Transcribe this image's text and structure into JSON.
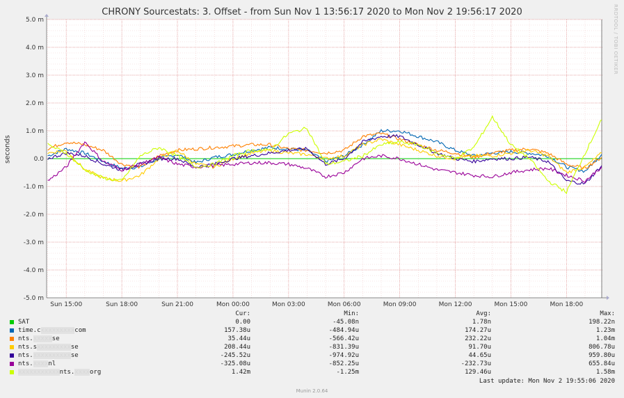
{
  "title": "CHRONY Sourcestats: 3. Offset - from Sun Nov  1 13:56:17 2020 to Mon Nov  2 19:56:17 2020",
  "watermark": "RRDTOOL / TOBI OETIKER",
  "footer": "Munin 2.0.64",
  "last_update": "Last update: Mon Nov  2 19:55:06 2020",
  "legend_header": {
    "cur": "Cur:",
    "min": "Min:",
    "avg": "Avg:",
    "max": "Max:"
  },
  "legend": [
    {
      "name": "SAT",
      "name_pre": "SAT",
      "name_mask": "",
      "name_post": "",
      "color": "#00cc00",
      "cur": "0.00",
      "min": "-45.08n",
      "avg": "1.78n",
      "max": "198.22n"
    },
    {
      "name": "time.c…com",
      "name_pre": "time.c",
      "name_mask": "xxxxxxxxx",
      "name_post": "com",
      "color": "#0066b3",
      "cur": "157.38u",
      "min": "-484.94u",
      "avg": "174.27u",
      "max": "1.23m"
    },
    {
      "name": "nts.…se",
      "name_pre": "nts.",
      "name_mask": "xxxxx",
      "name_post": "se",
      "color": "#ff8000",
      "cur": "35.44u",
      "min": "-566.42u",
      "avg": "232.22u",
      "max": "1.04m"
    },
    {
      "name": "nts.s…se",
      "name_pre": "nts.s",
      "name_mask": "xxxxxxxxx",
      "name_post": "se",
      "color": "#ffcc00",
      "cur": "208.44u",
      "min": "-831.39u",
      "avg": "91.70u",
      "max": "806.78u"
    },
    {
      "name": "nts.…se",
      "name_pre": "nts.",
      "name_mask": "xxxxxxxxxx",
      "name_post": "se",
      "color": "#330099",
      "cur": "-245.52u",
      "min": "-974.92u",
      "avg": "44.65u",
      "max": "959.80u"
    },
    {
      "name": "nts.t…nl",
      "name_pre": "nts.",
      "name_mask": "xxxx",
      "name_post": "nl",
      "color": "#990099",
      "cur": "-325.08u",
      "min": "-852.25u",
      "avg": "-232.73u",
      "max": "655.84u"
    },
    {
      "name": "…nts.…org",
      "name_pre": "",
      "name_mask": "xxxxxxxxxxx",
      "name_post": "nts.",
      "name_mask2": "xxxx",
      "name_post2": "org",
      "color": "#ccff00",
      "cur": "1.42m",
      "min": "-1.25m",
      "avg": "129.46u",
      "max": "1.58m"
    }
  ],
  "chart_data": {
    "type": "line",
    "title": "CHRONY Sourcestats: 3. Offset - from Sun Nov  1 13:56:17 2020 to Mon Nov  2 19:56:17 2020",
    "ylabel": "seconds",
    "xlabel": "",
    "ylim": [
      -5.0,
      5.0
    ],
    "y_unit": "m",
    "y_ticks": [
      "5.0 m",
      "4.0 m",
      "3.0 m",
      "2.0 m",
      "1.0 m",
      "0.0",
      "-1.0 m",
      "-2.0 m",
      "-3.0 m",
      "-4.0 m",
      "-5.0 m"
    ],
    "y_tick_values": [
      5,
      4,
      3,
      2,
      1,
      0,
      -1,
      -2,
      -3,
      -4,
      -5
    ],
    "x_range_hours": [
      13.94,
      43.94
    ],
    "x_ticks": [
      "Sun 15:00",
      "Sun 18:00",
      "Sun 21:00",
      "Mon 00:00",
      "Mon 03:00",
      "Mon 06:00",
      "Mon 09:00",
      "Mon 12:00",
      "Mon 15:00",
      "Mon 18:00"
    ],
    "x_tick_hours": [
      15,
      18,
      21,
      24,
      27,
      30,
      33,
      36,
      39,
      42
    ],
    "grid": true,
    "x_hours": [
      14.0,
      15.0,
      16.0,
      17.0,
      18.0,
      19.0,
      20.0,
      21.0,
      22.0,
      23.0,
      24.0,
      25.0,
      26.0,
      27.0,
      28.0,
      29.0,
      30.0,
      31.0,
      32.0,
      33.0,
      34.0,
      35.0,
      36.0,
      37.0,
      38.0,
      39.0,
      40.0,
      41.0,
      42.0,
      43.0,
      43.9
    ],
    "series": [
      {
        "name": "SAT",
        "color": "#00cc00",
        "values": [
          0,
          0,
          0,
          0,
          0,
          0,
          0,
          0,
          0,
          0,
          0,
          0,
          0,
          0,
          0,
          0,
          0,
          0,
          0,
          0,
          0,
          0,
          0,
          0,
          0,
          0,
          0,
          0,
          0,
          0,
          0
        ]
      },
      {
        "name": "time.c…com",
        "color": "#0066b3",
        "values": [
          0.1,
          0.35,
          0.2,
          -0.1,
          -0.35,
          -0.3,
          0.0,
          0.15,
          -0.15,
          0.05,
          0.15,
          0.3,
          0.4,
          0.35,
          0.3,
          -0.1,
          0.1,
          0.5,
          1.0,
          1.0,
          0.8,
          0.6,
          0.3,
          0.1,
          0.2,
          0.25,
          0.2,
          0.1,
          -0.3,
          -0.45,
          0.15
        ]
      },
      {
        "name": "nts.…se",
        "color": "#ff8000",
        "values": [
          0.35,
          0.6,
          0.5,
          0.3,
          -0.2,
          -0.3,
          0.1,
          0.3,
          0.35,
          0.4,
          0.45,
          0.5,
          0.5,
          0.35,
          0.3,
          0.2,
          0.3,
          0.8,
          0.9,
          0.7,
          0.5,
          0.3,
          0.2,
          0.05,
          0.2,
          0.3,
          0.35,
          0.2,
          -0.2,
          -0.35,
          0.05
        ]
      },
      {
        "name": "nts.s…se",
        "color": "#ffcc00",
        "values": [
          0.2,
          0.3,
          -0.4,
          -0.7,
          -0.8,
          -0.6,
          0.0,
          0.3,
          -0.2,
          -0.3,
          0.0,
          0.2,
          0.3,
          0.2,
          0.15,
          0.0,
          0.1,
          0.5,
          0.7,
          0.5,
          0.3,
          0.1,
          0.0,
          0.1,
          0.1,
          0.2,
          0.3,
          0.1,
          -0.5,
          -0.3,
          0.2
        ]
      },
      {
        "name": "nts.…se",
        "color": "#330099",
        "values": [
          0.0,
          0.2,
          0.1,
          -0.2,
          -0.4,
          -0.2,
          0.0,
          0.0,
          -0.3,
          -0.2,
          0.0,
          0.1,
          0.2,
          0.3,
          0.35,
          -0.2,
          0.0,
          0.6,
          0.8,
          0.8,
          0.5,
          0.2,
          0.0,
          -0.1,
          0.0,
          0.0,
          0.05,
          -0.1,
          -0.8,
          -0.9,
          -0.25
        ]
      },
      {
        "name": "nts.t…nl",
        "color": "#990099",
        "values": [
          -0.8,
          -0.3,
          0.6,
          -0.1,
          -0.4,
          -0.2,
          0.05,
          -0.2,
          -0.3,
          -0.25,
          -0.2,
          -0.15,
          -0.15,
          -0.2,
          -0.35,
          -0.65,
          -0.5,
          0.0,
          0.1,
          0.0,
          -0.2,
          -0.4,
          -0.5,
          -0.6,
          -0.65,
          -0.5,
          -0.4,
          -0.35,
          -0.6,
          -0.8,
          -0.3
        ]
      },
      {
        "name": "…nts.…org",
        "color": "#ccff00",
        "values": [
          0.5,
          0.2,
          -0.4,
          -0.7,
          -0.8,
          0.1,
          0.4,
          0.1,
          -0.3,
          -0.2,
          0.1,
          0.3,
          0.3,
          0.9,
          1.1,
          -0.2,
          -0.1,
          0.1,
          0.5,
          0.6,
          0.5,
          0.2,
          0.0,
          0.4,
          1.5,
          0.5,
          0.0,
          -0.8,
          -1.2,
          0.2,
          1.4
        ]
      }
    ]
  }
}
